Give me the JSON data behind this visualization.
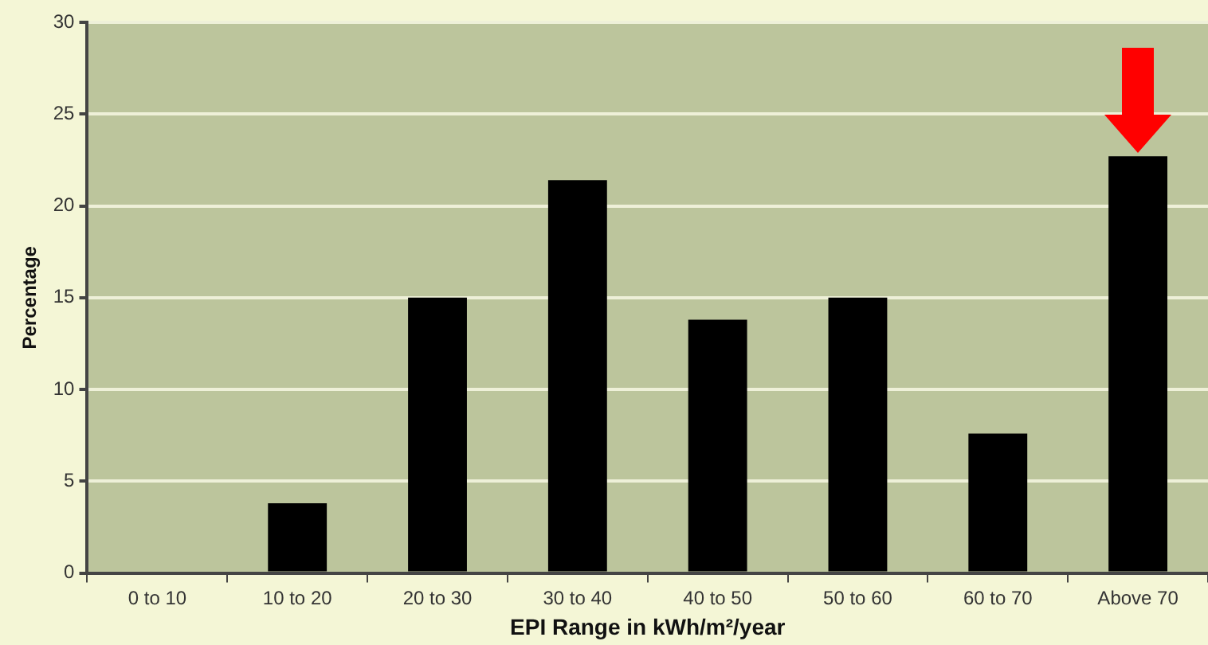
{
  "chart_data": {
    "type": "bar",
    "xlabel": "EPI Range in kWh/m²/year",
    "ylabel": "Percentage",
    "categories": [
      "0 to 10",
      "10 to 20",
      "20 to 30",
      "30 to 40",
      "40 to 50",
      "50 to 60",
      "60 to 70",
      "Above 70"
    ],
    "values": [
      0,
      3.8,
      15,
      21.4,
      13.8,
      15,
      7.6,
      22.7
    ],
    "color": "#000000",
    "ylim": [
      0,
      30
    ],
    "yticks": [
      0,
      5,
      10,
      15,
      20,
      25,
      30
    ],
    "grid": "y",
    "legend": false
  }
}
